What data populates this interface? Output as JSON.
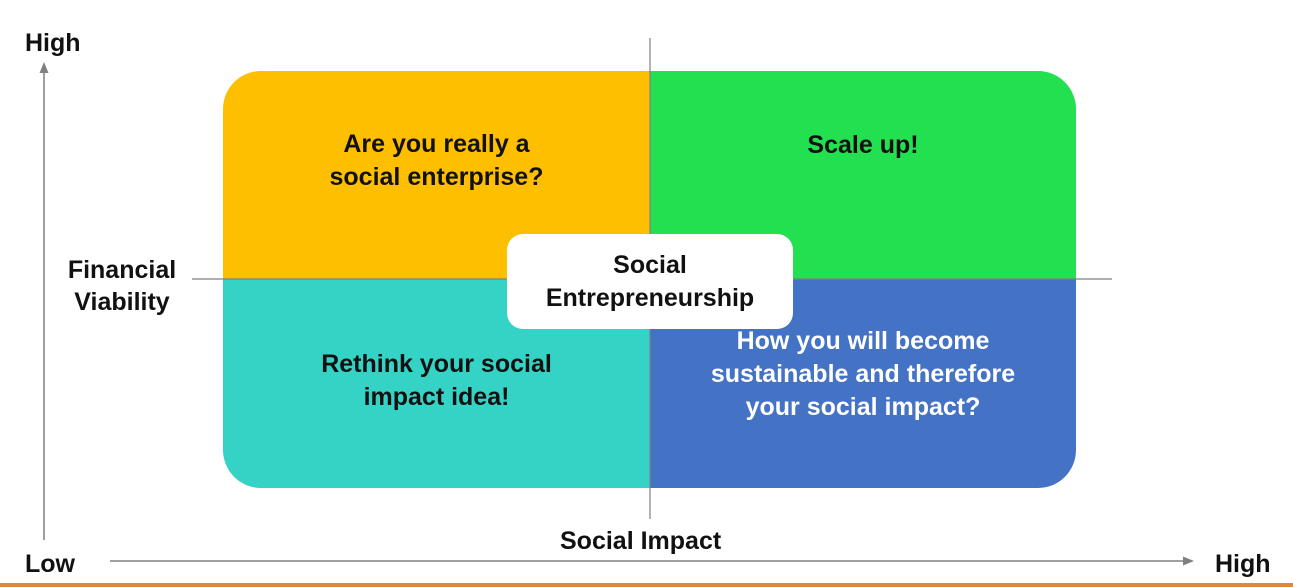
{
  "axes": {
    "y_high": "High",
    "y_low": "Low",
    "y_label": "Financial\nViability",
    "x_high": "High",
    "x_label": "Social Impact"
  },
  "quadrants": {
    "top_left": {
      "lines": [
        "Are you really a",
        "social enterprise?"
      ],
      "color": "#fdbf00"
    },
    "top_right": {
      "lines": [
        "Scale up!"
      ],
      "color": "#22e04f"
    },
    "bottom_left": {
      "lines": [
        "Rethink your social",
        "impact idea!"
      ],
      "color": "#35d3c6"
    },
    "bottom_right": {
      "lines": [
        "How you will become",
        "sustainable and therefore",
        "your social impact?"
      ],
      "color": "#4472c4"
    }
  },
  "center": {
    "lines": [
      "Social",
      "Entrepreneurship"
    ]
  },
  "colors": {
    "axis": "#808080",
    "bottom_rule": "#e0883a"
  }
}
